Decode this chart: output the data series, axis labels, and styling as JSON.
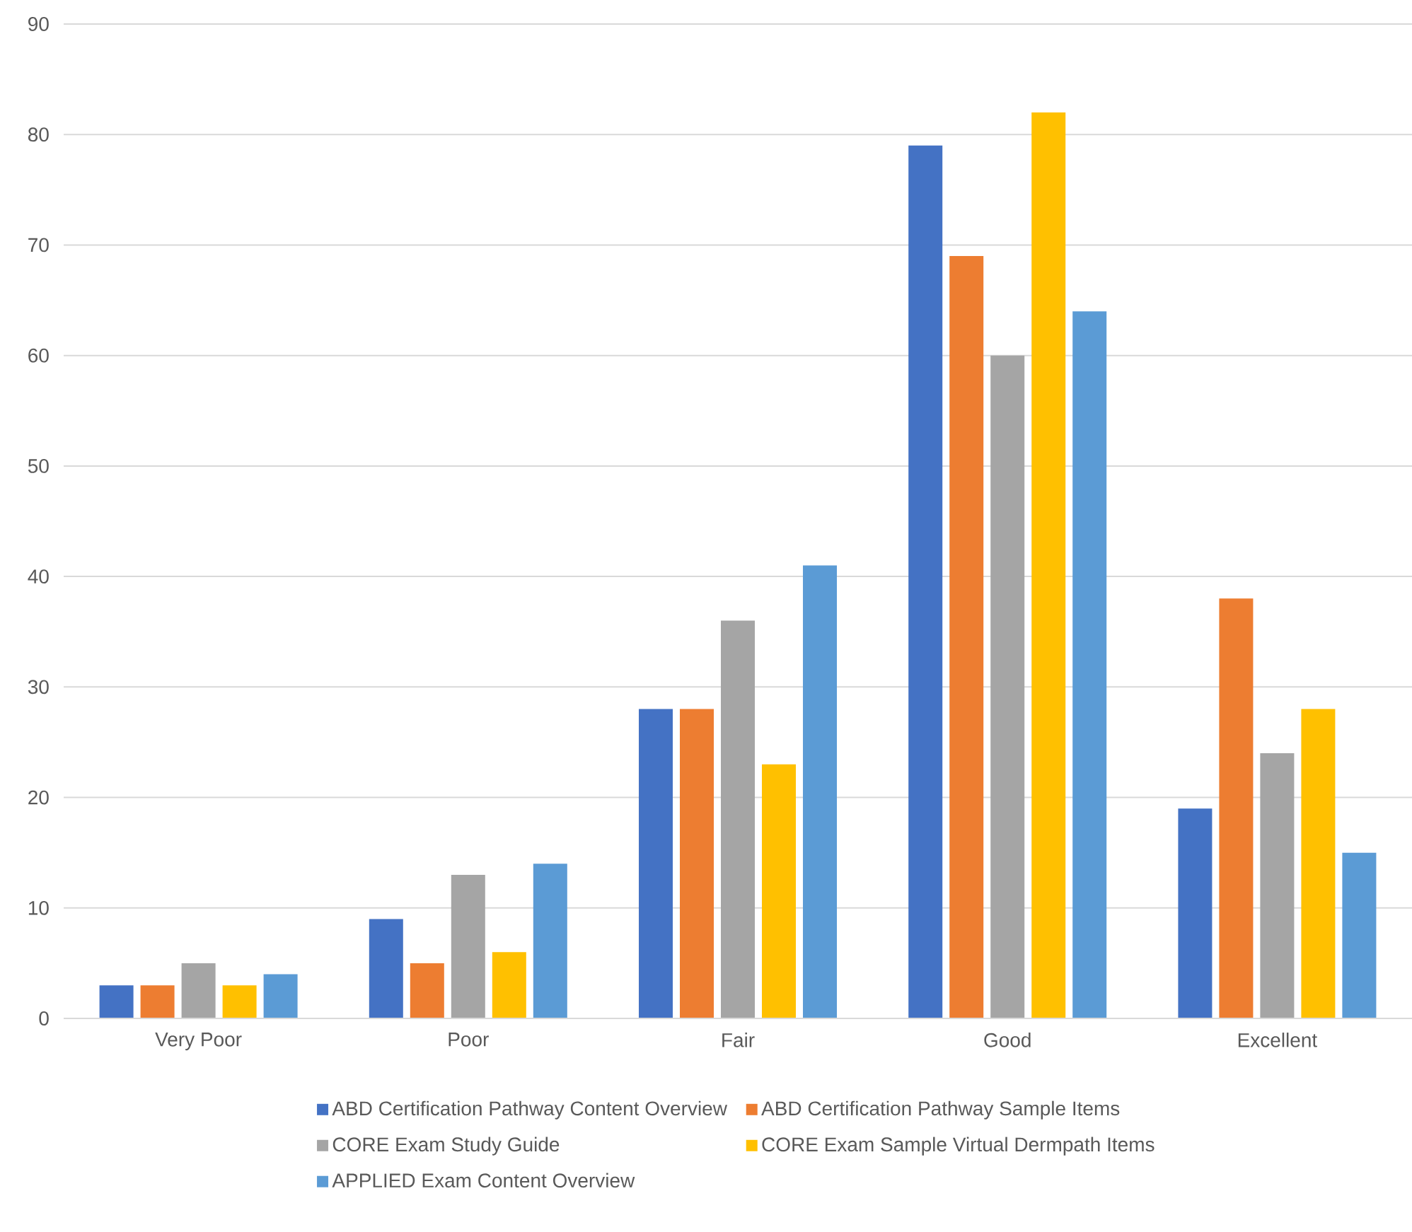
{
  "chart_data": {
    "type": "bar",
    "categories": [
      "Very Poor",
      "Poor",
      "Fair",
      "Good",
      "Excellent"
    ],
    "series": [
      {
        "name": "ABD Certification Pathway Content Overview",
        "color": "#4472c4",
        "values": [
          3,
          9,
          28,
          79,
          19
        ]
      },
      {
        "name": "ABD Certification Pathway Sample Items",
        "color": "#ed7d31",
        "values": [
          3,
          5,
          28,
          69,
          38
        ]
      },
      {
        "name": "CORE Exam Study Guide",
        "color": "#a5a5a5",
        "values": [
          5,
          13,
          36,
          60,
          24
        ]
      },
      {
        "name": "CORE Exam Sample Virtual Dermpath Items",
        "color": "#ffc000",
        "values": [
          3,
          6,
          23,
          82,
          28
        ]
      },
      {
        "name": "APPLIED Exam Content Overview",
        "color": "#5b9bd5",
        "values": [
          4,
          14,
          41,
          64,
          15
        ]
      }
    ],
    "ylim": [
      0,
      90
    ],
    "yticks": [
      0,
      10,
      20,
      30,
      40,
      50,
      60,
      70,
      80,
      90
    ],
    "grid": "y",
    "legend": "bottom"
  }
}
